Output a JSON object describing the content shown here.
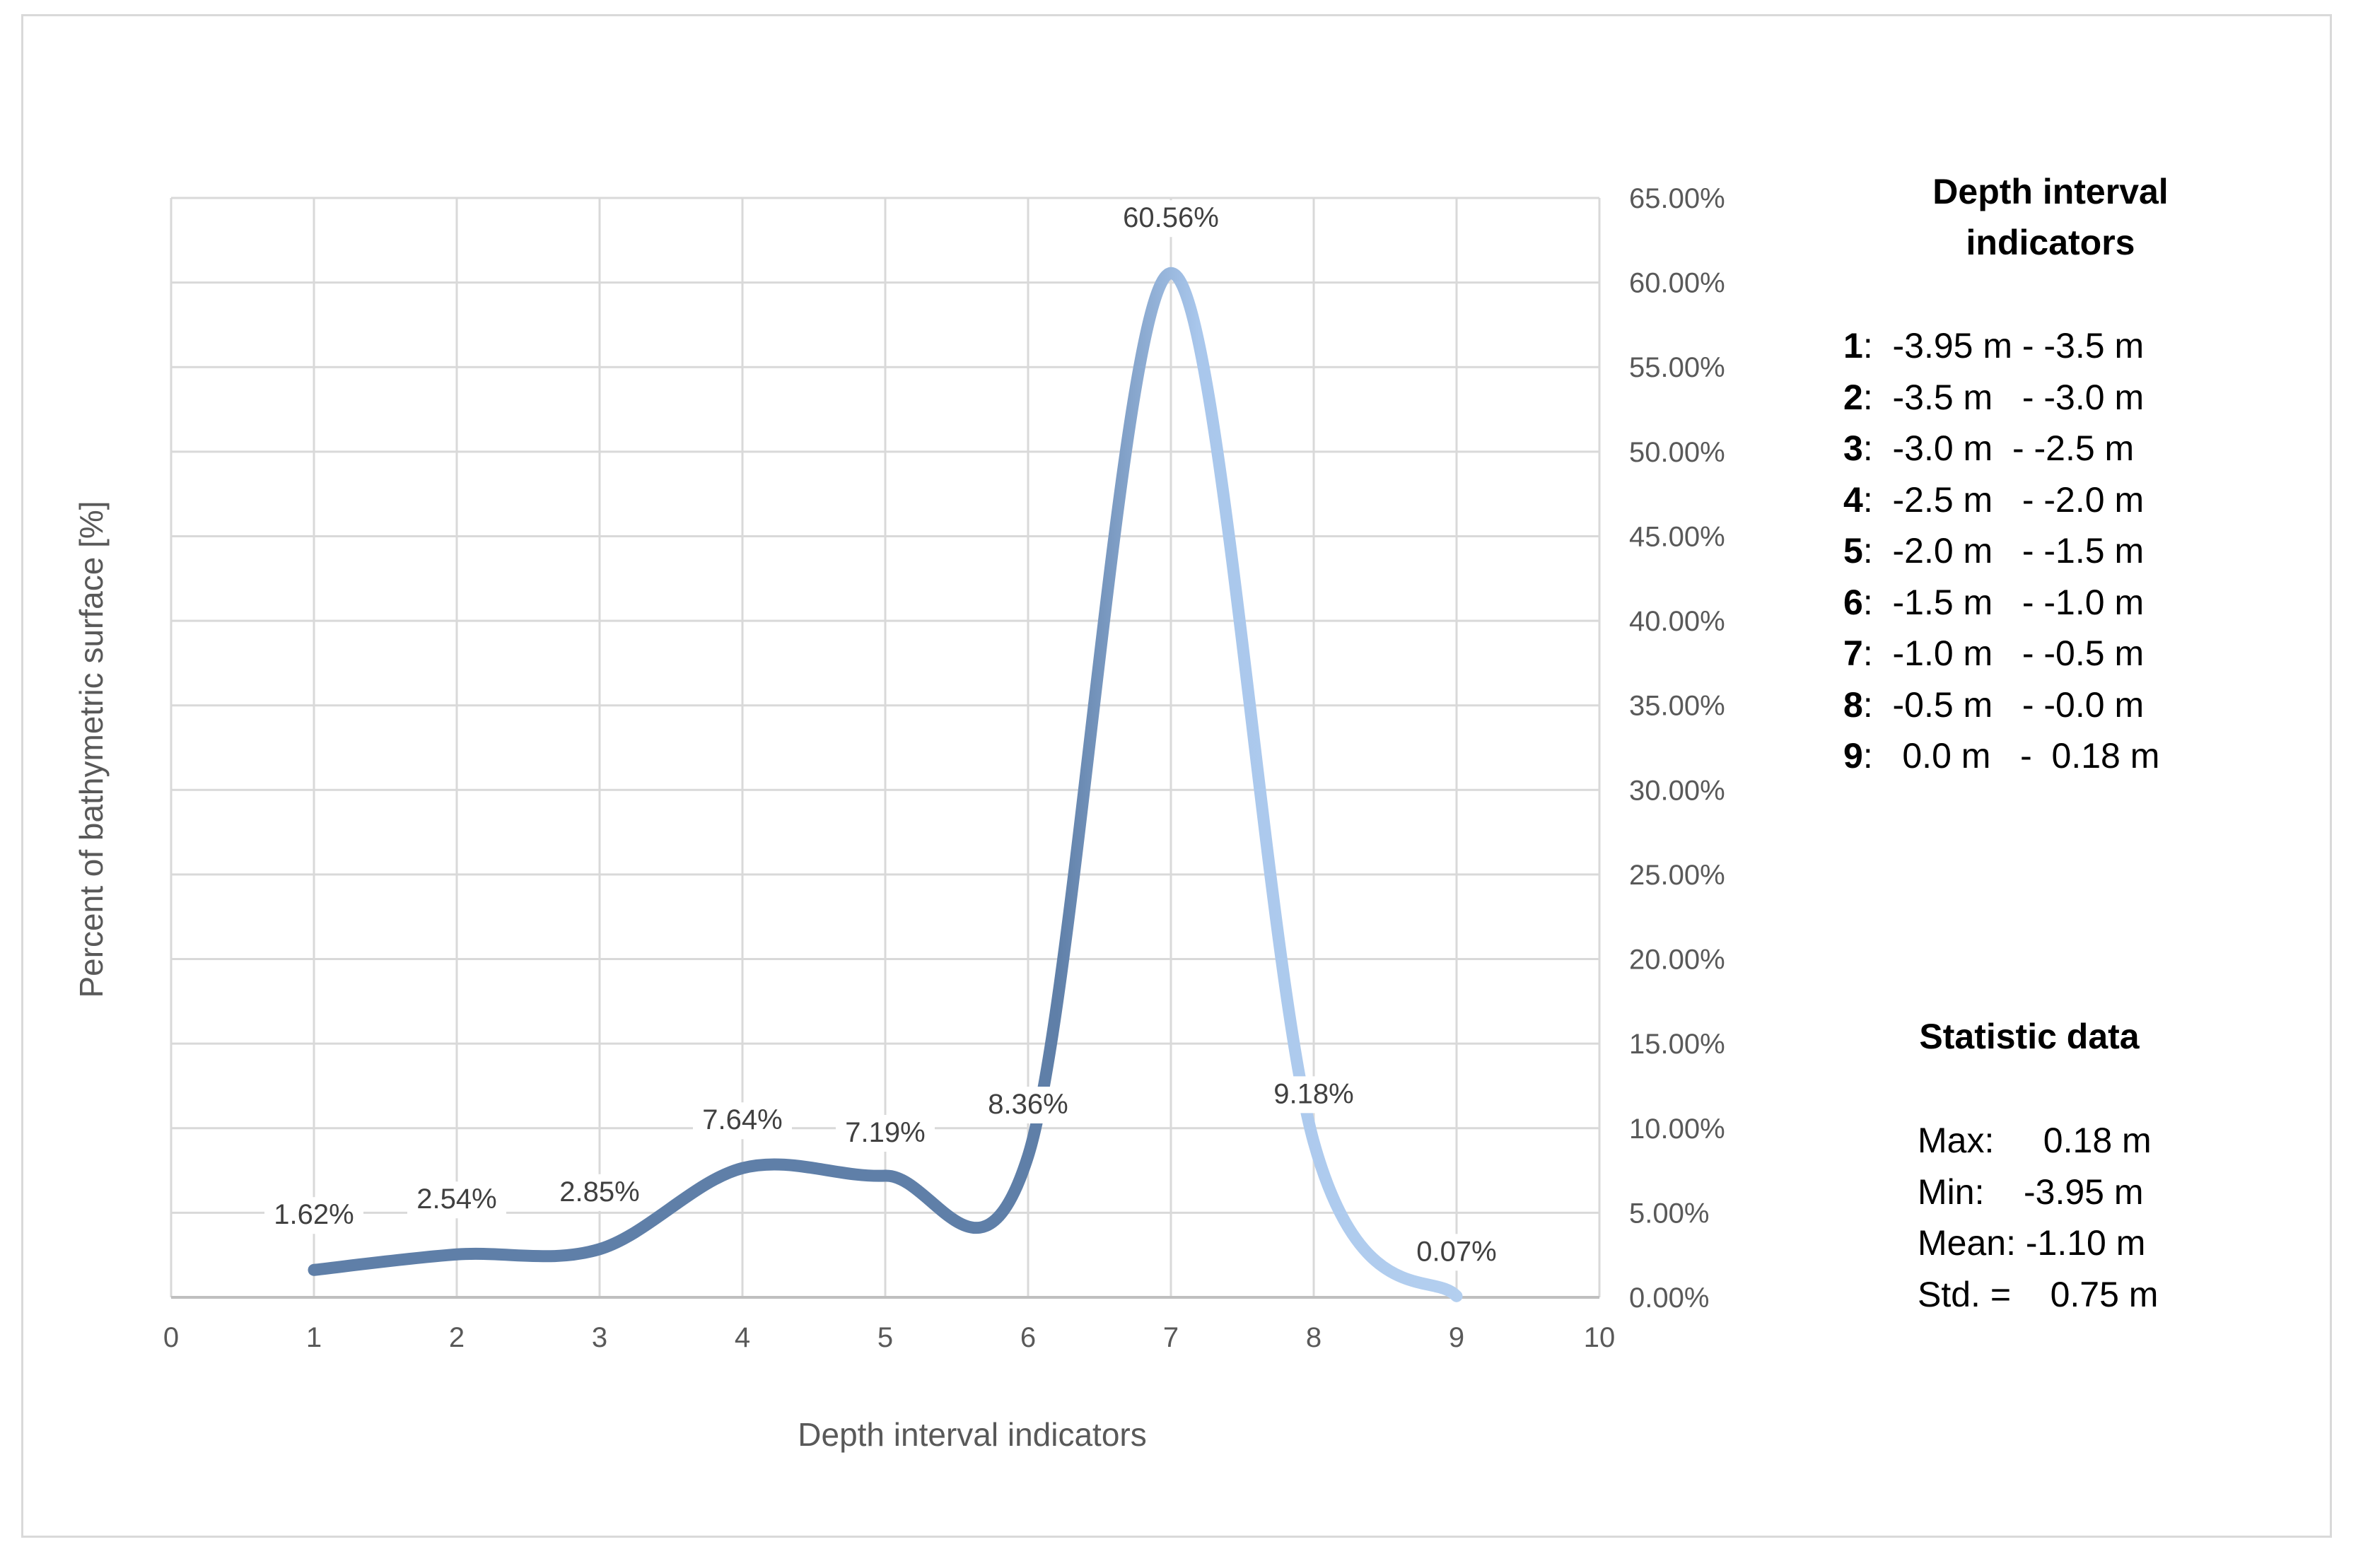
{
  "chart_data": {
    "type": "line",
    "smooth": true,
    "title": "",
    "xlabel": "Depth interval indicators",
    "ylabel": "Percent of bathymetric surface [%]",
    "x": [
      1,
      2,
      3,
      4,
      5,
      6,
      7,
      8,
      9
    ],
    "values": [
      1.62,
      2.54,
      2.85,
      7.64,
      7.19,
      8.36,
      60.56,
      9.18,
      0.07
    ],
    "data_labels": [
      "1.62%",
      "2.54%",
      "2.85%",
      "7.64%",
      "7.19%",
      "8.36%",
      "60.56%",
      "9.18%",
      "0.07%"
    ],
    "xlim": [
      0,
      10
    ],
    "ylim": [
      0,
      65
    ],
    "x_ticks": [
      "0",
      "1",
      "2",
      "3",
      "4",
      "5",
      "6",
      "7",
      "8",
      "9",
      "10"
    ],
    "y_ticks": [
      "0.00%",
      "5.00%",
      "10.00%",
      "15.00%",
      "20.00%",
      "25.00%",
      "30.00%",
      "35.00%",
      "40.00%",
      "45.00%",
      "50.00%",
      "55.00%",
      "60.00%",
      "65.00%"
    ],
    "y_axis_side": "right",
    "grid": true,
    "line_gradient": [
      "#5f7fa8",
      "#a9c7ec"
    ]
  },
  "legend_panel": {
    "title": "Depth interval indicators",
    "items": [
      {
        "key": "1",
        "range": ":  -3.95 m - -3.5 m"
      },
      {
        "key": "2",
        "range": ":  -3.5 m   - -3.0 m"
      },
      {
        "key": "3",
        "range": ":  -3.0 m  - -2.5 m"
      },
      {
        "key": "4",
        "range": ":  -2.5 m   - -2.0 m"
      },
      {
        "key": "5",
        "range": ":  -2.0 m   - -1.5 m"
      },
      {
        "key": "6",
        "range": ":  -1.5 m   - -1.0 m"
      },
      {
        "key": "7",
        "range": ":  -1.0 m   - -0.5 m"
      },
      {
        "key": "8",
        "range": ":  -0.5 m   - -0.0 m"
      },
      {
        "key": "9",
        "range": ":   0.0 m   -  0.18 m"
      }
    ]
  },
  "stats_panel": {
    "title": "Statistic data",
    "rows": [
      "Max:     0.18 m",
      "Min:    -3.95 m",
      "Mean: -1.10 m",
      "Std. =    0.75 m"
    ]
  }
}
